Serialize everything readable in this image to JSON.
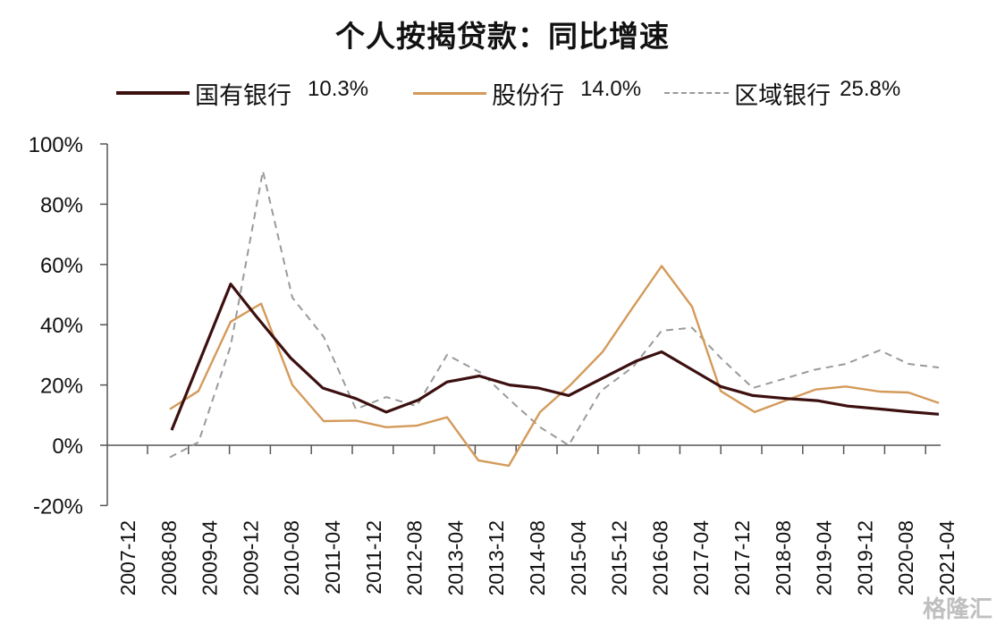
{
  "title": "个人按揭贷款：同比增速",
  "legend": [
    {
      "label": "国有银行",
      "value": "10.3%",
      "color": "#3d1010",
      "style": "solid"
    },
    {
      "label": "股份行",
      "value": "14.0%",
      "color": "#d49a5a",
      "style": "solid"
    },
    {
      "label": "区域银行",
      "value": "25.8%",
      "color": "#9a9a9a",
      "style": "dashed"
    }
  ],
  "watermark": "格隆汇",
  "chart_data": {
    "type": "line",
    "title": "个人按揭贷款：同比增速",
    "xlabel": "",
    "ylabel": "",
    "ylim": [
      -0.2,
      1.0
    ],
    "yticks": [
      "-20%",
      "0%",
      "20%",
      "40%",
      "60%",
      "80%",
      "100%"
    ],
    "x_tick_labels": [
      "2007-12",
      "2008-08",
      "2009-04",
      "2009-12",
      "2010-08",
      "2011-04",
      "2011-12",
      "2012-08",
      "2013-04",
      "2013-12",
      "2014-08",
      "2015-04",
      "2015-12",
      "2016-08",
      "2017-04",
      "2017-12",
      "2018-08",
      "2019-04",
      "2019-12",
      "2020-08",
      "2021-04"
    ],
    "grid": false,
    "legend_position": "top",
    "x": [
      "2009-02",
      "2009-06",
      "2009-10",
      "2010-02",
      "2010-06",
      "2010-10",
      "2011-02",
      "2011-06",
      "2011-10",
      "2012-02",
      "2012-06",
      "2012-10",
      "2013-02",
      "2013-06",
      "2013-10",
      "2014-02",
      "2014-06",
      "2014-10",
      "2015-02",
      "2015-06",
      "2015-10",
      "2016-02",
      "2016-06",
      "2016-10",
      "2017-02",
      "2017-06",
      "2017-10",
      "2018-02",
      "2018-06",
      "2018-10",
      "2019-02",
      "2019-06",
      "2019-10",
      "2020-02",
      "2020-06",
      "2020-10",
      "2021-02",
      "2021-06"
    ],
    "series": [
      {
        "name": "国有银行",
        "end_value": "10.3%",
        "color": "#3d1010",
        "points": [
          [
            192,
            0.05
          ],
          [
            258,
            0.535
          ],
          [
            286,
            0.43
          ],
          [
            325,
            0.29
          ],
          [
            361,
            0.19
          ],
          [
            398,
            0.155
          ],
          [
            432,
            0.11
          ],
          [
            468,
            0.15
          ],
          [
            500,
            0.21
          ],
          [
            536,
            0.23
          ],
          [
            570,
            0.2
          ],
          [
            602,
            0.19
          ],
          [
            636,
            0.165
          ],
          [
            672,
            0.22
          ],
          [
            712,
            0.28
          ],
          [
            740,
            0.31
          ],
          [
            806,
            0.195
          ],
          [
            842,
            0.165
          ],
          [
            880,
            0.155
          ],
          [
            914,
            0.148
          ],
          [
            948,
            0.13
          ],
          [
            986,
            0.12
          ],
          [
            1020,
            0.11
          ],
          [
            1050,
            0.103
          ]
        ]
      },
      {
        "name": "股份行",
        "end_value": "14.0%",
        "color": "#d49a5a",
        "points": [
          [
            190,
            0.12
          ],
          [
            222,
            0.18
          ],
          [
            258,
            0.41
          ],
          [
            292,
            0.47
          ],
          [
            327,
            0.2
          ],
          [
            362,
            0.08
          ],
          [
            398,
            0.082
          ],
          [
            432,
            0.06
          ],
          [
            466,
            0.065
          ],
          [
            500,
            0.093
          ],
          [
            535,
            -0.05
          ],
          [
            569,
            -0.068
          ],
          [
            604,
            0.11
          ],
          [
            638,
            0.2
          ],
          [
            674,
            0.31
          ],
          [
            706,
            0.45
          ],
          [
            740,
            0.595
          ],
          [
            774,
            0.46
          ],
          [
            806,
            0.18
          ],
          [
            844,
            0.11
          ],
          [
            880,
            0.15
          ],
          [
            912,
            0.185
          ],
          [
            946,
            0.195
          ],
          [
            984,
            0.178
          ],
          [
            1016,
            0.175
          ],
          [
            1050,
            0.14
          ]
        ]
      },
      {
        "name": "区域银行",
        "end_value": "25.8%",
        "color": "#9a9a9a",
        "points": [
          [
            190,
            -0.04
          ],
          [
            222,
            0.01
          ],
          [
            258,
            0.33
          ],
          [
            294,
            0.91
          ],
          [
            327,
            0.49
          ],
          [
            362,
            0.36
          ],
          [
            398,
            0.12
          ],
          [
            432,
            0.16
          ],
          [
            466,
            0.13
          ],
          [
            500,
            0.3
          ],
          [
            538,
            0.24
          ],
          [
            574,
            0.14
          ],
          [
            604,
            0.06
          ],
          [
            636,
            0.0
          ],
          [
            672,
            0.18
          ],
          [
            708,
            0.26
          ],
          [
            740,
            0.38
          ],
          [
            774,
            0.39
          ],
          [
            806,
            0.29
          ],
          [
            842,
            0.19
          ],
          [
            876,
            0.22
          ],
          [
            910,
            0.25
          ],
          [
            946,
            0.27
          ],
          [
            984,
            0.315
          ],
          [
            1016,
            0.27
          ],
          [
            1050,
            0.258
          ]
        ]
      }
    ]
  }
}
